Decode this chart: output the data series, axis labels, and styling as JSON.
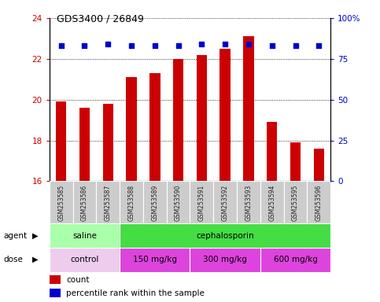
{
  "title": "GDS3400 / 26849",
  "samples": [
    "GSM253585",
    "GSM253586",
    "GSM253587",
    "GSM253588",
    "GSM253589",
    "GSM253590",
    "GSM253591",
    "GSM253592",
    "GSM253593",
    "GSM253594",
    "GSM253595",
    "GSM253596"
  ],
  "bar_values": [
    19.9,
    19.6,
    19.8,
    21.1,
    21.3,
    22.0,
    22.2,
    22.5,
    23.1,
    18.9,
    17.9,
    17.6
  ],
  "percentile_values": [
    83,
    83,
    84,
    83,
    83,
    83,
    84,
    84,
    84,
    83,
    83,
    83
  ],
  "bar_color": "#cc0000",
  "percentile_color": "#0000cc",
  "bar_base": 16,
  "ylim_left": [
    16,
    24
  ],
  "ylim_right": [
    0,
    100
  ],
  "yticks_left": [
    16,
    18,
    20,
    22,
    24
  ],
  "yticks_right": [
    0,
    25,
    50,
    75,
    100
  ],
  "agent_groups": [
    {
      "label": "saline",
      "start": 0,
      "end": 3,
      "color": "#aaffaa"
    },
    {
      "label": "cephalosporin",
      "start": 3,
      "end": 12,
      "color": "#44dd44"
    }
  ],
  "dose_groups": [
    {
      "label": "control",
      "start": 0,
      "end": 3,
      "color": "#eeccee"
    },
    {
      "label": "150 mg/kg",
      "start": 3,
      "end": 6,
      "color": "#dd44dd"
    },
    {
      "label": "300 mg/kg",
      "start": 6,
      "end": 9,
      "color": "#dd44dd"
    },
    {
      "label": "600 mg/kg",
      "start": 9,
      "end": 12,
      "color": "#dd44dd"
    }
  ],
  "grid_color": "#000000",
  "bg_color": "#ffffff",
  "tick_label_bg": "#cccccc",
  "legend_items": [
    {
      "label": "count",
      "color": "#cc0000"
    },
    {
      "label": "percentile rank within the sample",
      "color": "#0000cc"
    }
  ]
}
